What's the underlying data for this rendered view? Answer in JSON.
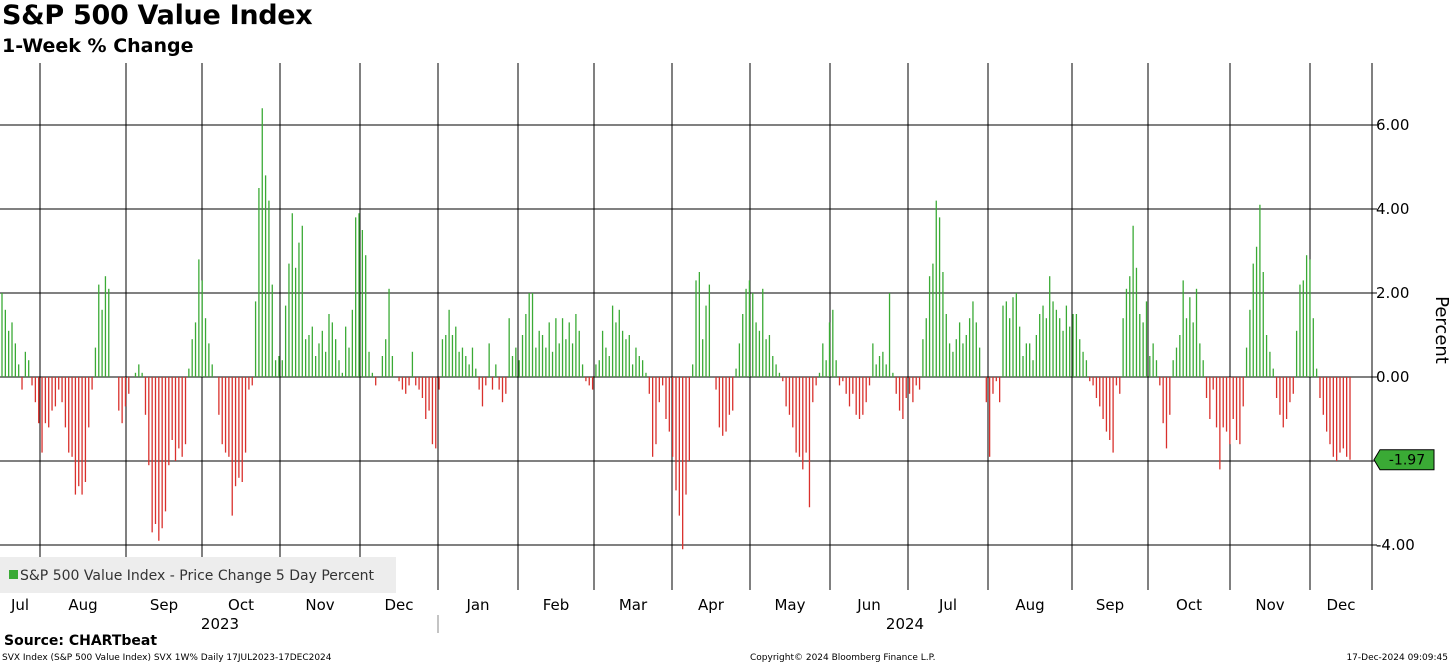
{
  "chart_data": {
    "type": "bar",
    "title": "S&P 500 Value Index",
    "subtitle": "1-Week % Change",
    "ylabel": "Percent",
    "ylim": [
      -5,
      7.5
    ],
    "yticks": [
      6,
      4,
      2,
      0,
      -2,
      -4
    ],
    "ytick_labels": [
      "6.00",
      "4.00",
      "2.00",
      "0.00",
      "-2.00",
      "-4.00"
    ],
    "grid": true,
    "legend": "bottom-left",
    "months": [
      {
        "label": "Jul",
        "year": "2023"
      },
      {
        "label": "Aug",
        "year": "2023"
      },
      {
        "label": "Sep",
        "year": "2023"
      },
      {
        "label": "Oct",
        "year": "2023"
      },
      {
        "label": "Nov",
        "year": "2023"
      },
      {
        "label": "Dec",
        "year": "2023"
      },
      {
        "label": "Jan",
        "year": "2024"
      },
      {
        "label": "Feb",
        "year": "2024"
      },
      {
        "label": "Mar",
        "year": "2024"
      },
      {
        "label": "Apr",
        "year": "2024"
      },
      {
        "label": "May",
        "year": "2024"
      },
      {
        "label": "Jun",
        "year": "2024"
      },
      {
        "label": "Jul",
        "year": "2024"
      },
      {
        "label": "Aug",
        "year": "2024"
      },
      {
        "label": "Sep",
        "year": "2024"
      },
      {
        "label": "Oct",
        "year": "2024"
      },
      {
        "label": "Nov",
        "year": "2024"
      },
      {
        "label": "Dec",
        "year": "2024"
      }
    ],
    "year_labels": [
      "2023",
      "2024"
    ],
    "series": [
      {
        "name": "S&P 500 Value Index - Price Change 5 Day Percent",
        "color_positive": "#3aaa35",
        "color_negative": "#d9302c",
        "start_date": "2023-07-17",
        "end_date": "2024-12-17",
        "last_value": -1.97,
        "last_value_label": "-1.97",
        "values": [
          2.0,
          1.6,
          1.1,
          1.3,
          0.8,
          0.3,
          -0.3,
          0.6,
          0.4,
          -0.2,
          -0.6,
          -1.1,
          -1.8,
          -1.1,
          -1.2,
          -0.8,
          -0.7,
          -0.3,
          -0.6,
          -1.2,
          -1.8,
          -1.9,
          -2.8,
          -2.6,
          -2.8,
          -2.5,
          -1.2,
          -0.3,
          0.7,
          2.2,
          1.6,
          2.4,
          2.1,
          0,
          0,
          -0.8,
          -1.1,
          -0.7,
          -0.4,
          0,
          0.1,
          0.3,
          0.1,
          -0.9,
          -2.1,
          -3.7,
          -3.5,
          -3.9,
          -3.6,
          -3.2,
          -2.1,
          -1.5,
          -2.0,
          -1.7,
          -1.9,
          -1.6,
          0.2,
          0.9,
          1.3,
          2.8,
          2.3,
          1.4,
          0.8,
          0.3,
          0,
          -0.9,
          -1.6,
          -1.8,
          -1.9,
          -3.3,
          -2.6,
          -2.4,
          -2.5,
          -1.8,
          -0.3,
          -0.2,
          1.8,
          4.5,
          6.4,
          4.8,
          4.2,
          2.2,
          0.4,
          0.5,
          0.4,
          1.7,
          2.7,
          3.9,
          2.6,
          3.2,
          3.6,
          0.9,
          1.0,
          1.2,
          0.5,
          0.8,
          1.1,
          0.6,
          1.5,
          1.3,
          0.9,
          0.4,
          0.1,
          1.2,
          0.7,
          1.6,
          3.8,
          3.9,
          3.5,
          2.9,
          0.6,
          0.1,
          -0.2,
          0,
          0.5,
          0.9,
          2.1,
          0.5,
          0,
          -0.1,
          -0.3,
          -0.4,
          -0.2,
          0.6,
          -0.2,
          -0.3,
          -0.5,
          -1.0,
          -0.8,
          -1.6,
          -1.7,
          -0.3,
          0.9,
          1.0,
          1.6,
          1.0,
          1.2,
          0.6,
          0.7,
          0.5,
          0.3,
          0.7,
          0.2,
          -0.3,
          -0.7,
          -0.2,
          0.8,
          -0.3,
          0.3,
          -0.3,
          -0.6,
          -0.4,
          1.4,
          0.5,
          0.7,
          0.4,
          1.0,
          1.5,
          2.0,
          2.0,
          0.7,
          1.1,
          1.0,
          0.7,
          1.3,
          0.6,
          1.4,
          0.8,
          1.4,
          0.9,
          1.3,
          0.8,
          1.5,
          1.1,
          0.3,
          -0.1,
          -0.2,
          -0.3,
          0.3,
          0.4,
          1.1,
          0.7,
          0.5,
          1.7,
          1.3,
          1.6,
          1.1,
          0.9,
          1.0,
          0.3,
          0.7,
          0.5,
          0.4,
          0.1,
          -0.4,
          -1.9,
          -1.6,
          -0.6,
          -0.2,
          -1.0,
          -1.3,
          -1.9,
          -2.7,
          -3.3,
          -4.1,
          -2.8,
          -2.0,
          0.3,
          2.3,
          2.5,
          0.9,
          1.7,
          2.2,
          0,
          -0.3,
          -1.2,
          -1.4,
          -1.3,
          -0.9,
          -0.8,
          0.2,
          0.8,
          1.5,
          2.1,
          2.3,
          2.0,
          1.3,
          1.1,
          2.1,
          0.9,
          1.0,
          0.5,
          0.3,
          0.1,
          -0.1,
          -0.7,
          -0.9,
          -1.2,
          -1.8,
          -1.9,
          -2.2,
          -1.8,
          -3.1,
          -0.6,
          -0.2,
          0.1,
          0.8,
          0.4,
          1.3,
          1.6,
          0.4,
          -0.2,
          -0.1,
          -0.4,
          -0.7,
          -0.4,
          -0.9,
          -1.0,
          -0.9,
          -0.6,
          -0.2,
          0.8,
          0.3,
          0.5,
          0.6,
          0.3,
          2.0,
          0.1,
          -0.4,
          -0.8,
          -1.0,
          -0.5,
          -0.4,
          -0.6,
          -0.2,
          -0.3,
          0.9,
          1.4,
          2.4,
          2.7,
          4.2,
          3.8,
          2.5,
          1.5,
          0.8,
          0.6,
          0.9,
          1.3,
          0.8,
          1.0,
          1.4,
          1.8,
          1.3,
          0.7,
          0,
          -0.6,
          -1.9,
          -0.4,
          -0.1,
          -0.6,
          1.7,
          1.8,
          1.4,
          1.9,
          2.0,
          1.2,
          0.5,
          0.8,
          0.8,
          0.4,
          1.0,
          1.5,
          1.7,
          1.4,
          2.4,
          1.8,
          1.6,
          1.4,
          1.1,
          1.7,
          1.2,
          1.5,
          1.5,
          0.9,
          0.6,
          0.4,
          -0.1,
          -0.2,
          -0.5,
          -0.7,
          -1.0,
          -1.3,
          -1.5,
          -1.8,
          -0.2,
          -0.4,
          1.4,
          2.1,
          2.4,
          3.6,
          2.6,
          1.5,
          1.3,
          1.8,
          0.5,
          0.8,
          0.4,
          -0.2,
          -1.1,
          -1.7,
          -0.9,
          0.4,
          0.7,
          1.0,
          2.3,
          1.4,
          1.9,
          1.3,
          2.1,
          0.8,
          0.4,
          -0.5,
          -1.0,
          -0.3,
          -1.2,
          -2.2,
          -1.2,
          -1.3,
          -1.6,
          -1.0,
          -1.5,
          -1.6,
          -0.7,
          0.7,
          1.6,
          2.7,
          3.1,
          4.1,
          2.5,
          1.0,
          0.6,
          0.2,
          -0.5,
          -0.9,
          -1.2,
          -1.0,
          -0.6,
          -0.4,
          1.1,
          2.2,
          2.3,
          2.9,
          2.8,
          1.4,
          0.2,
          -0.5,
          -0.9,
          -1.3,
          -1.6,
          -1.9,
          -2.0,
          -1.8,
          -1.7,
          -1.9,
          -1.97
        ]
      }
    ]
  },
  "source": "Source: CHARTbeat",
  "footer": {
    "left": "SVX Index (S&P 500 Value Index) SVX 1W%  Daily 17JUL2023-17DEC2024",
    "center": "Copyright© 2024 Bloomberg Finance L.P.",
    "right": "17-Dec-2024 09:09:45"
  }
}
